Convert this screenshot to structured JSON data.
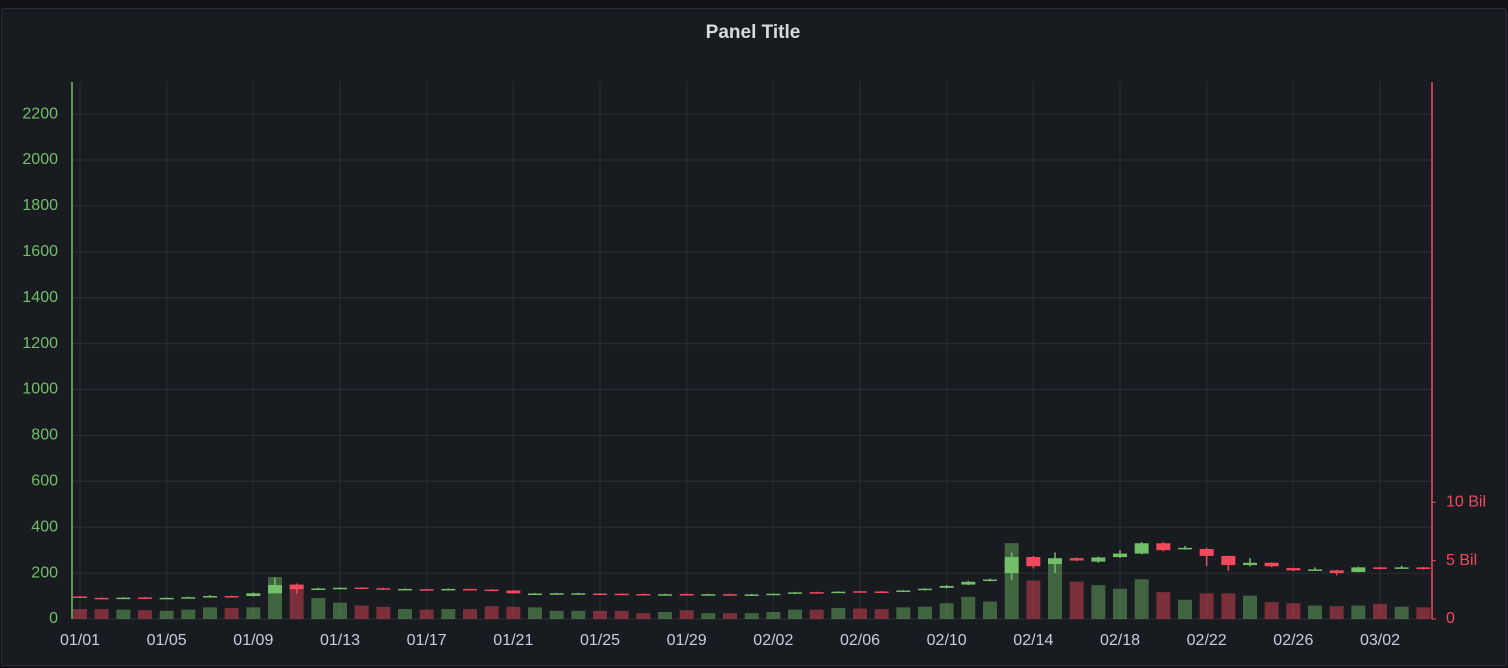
{
  "chart_data": {
    "type": "candlestick",
    "title": "Panel Title",
    "categories": [
      "01/01",
      null,
      null,
      null,
      "01/05",
      null,
      null,
      null,
      "01/09",
      null,
      null,
      null,
      "01/13",
      null,
      null,
      null,
      "01/17",
      null,
      null,
      null,
      "01/21",
      null,
      null,
      null,
      "01/25",
      null,
      null,
      null,
      "01/29",
      null,
      null,
      null,
      "02/02",
      null,
      null,
      null,
      "02/06",
      null,
      null,
      null,
      "02/10",
      null,
      null,
      null,
      "02/14",
      null,
      null,
      null,
      "02/18",
      null,
      null,
      null,
      "02/22",
      null,
      null,
      null,
      "02/26",
      null,
      null,
      null,
      "03/02",
      null,
      null
    ],
    "open": [
      98,
      92,
      89,
      94,
      90,
      92,
      95,
      100,
      100,
      112,
      150,
      128,
      132,
      137,
      134,
      128,
      130,
      128,
      131,
      128,
      124,
      107,
      110,
      111,
      111,
      110,
      109,
      106,
      109,
      107,
      108,
      105,
      107,
      112,
      117,
      116,
      121,
      120,
      120,
      126,
      136,
      150,
      166,
      200,
      270,
      240,
      265,
      250,
      270,
      285,
      330,
      305,
      305,
      275,
      235,
      245,
      222,
      212,
      212,
      205,
      225,
      220,
      225
    ],
    "high": [
      100,
      94,
      95,
      96,
      94,
      97,
      104,
      102,
      115,
      180,
      155,
      136,
      138,
      139,
      136,
      133,
      131,
      133,
      132,
      130,
      126,
      113,
      114,
      114,
      113,
      112,
      111,
      110,
      111,
      110,
      110,
      109,
      112,
      118,
      119,
      121,
      123,
      122,
      126,
      134,
      148,
      166,
      176,
      290,
      275,
      290,
      268,
      272,
      300,
      335,
      335,
      318,
      310,
      275,
      265,
      247,
      224,
      225,
      214,
      228,
      227,
      232,
      227
    ],
    "low": [
      92,
      87,
      88,
      88,
      89,
      91,
      94,
      95,
      98,
      110,
      110,
      126,
      130,
      131,
      127,
      126,
      125,
      126,
      126,
      122,
      110,
      105,
      108,
      109,
      107,
      106,
      103,
      104,
      105,
      105,
      105,
      103,
      105,
      110,
      113,
      114,
      117,
      116,
      118,
      124,
      134,
      148,
      164,
      170,
      220,
      200,
      252,
      245,
      266,
      282,
      295,
      302,
      230,
      210,
      230,
      226,
      208,
      210,
      190,
      203,
      216,
      218,
      215
    ],
    "close": [
      94,
      89,
      93,
      90,
      92,
      95,
      100,
      97,
      112,
      148,
      130,
      133,
      136,
      133,
      129,
      131,
      127,
      131,
      128,
      124,
      112,
      111,
      112,
      112,
      109,
      108,
      105,
      108,
      107,
      108,
      107,
      107,
      110,
      116,
      115,
      119,
      119,
      118,
      124,
      132,
      144,
      162,
      172,
      270,
      230,
      265,
      255,
      268,
      285,
      330,
      300,
      310,
      275,
      235,
      245,
      230,
      212,
      216,
      200,
      225,
      218,
      225,
      218
    ],
    "volume": [
      0.85,
      0.85,
      0.8,
      0.75,
      0.7,
      0.8,
      1.0,
      0.95,
      1.0,
      3.6,
      2.9,
      1.8,
      1.4,
      1.15,
      1.05,
      0.85,
      0.8,
      0.85,
      0.85,
      1.1,
      1.05,
      1.0,
      0.7,
      0.7,
      0.7,
      0.7,
      0.5,
      0.6,
      0.75,
      0.5,
      0.5,
      0.5,
      0.6,
      0.8,
      0.8,
      0.95,
      0.9,
      0.85,
      1.0,
      1.05,
      1.35,
      1.9,
      1.5,
      6.5,
      3.3,
      5.0,
      3.2,
      2.9,
      2.6,
      3.4,
      2.3,
      1.65,
      2.2,
      2.2,
      2.0,
      1.45,
      1.35,
      1.15,
      1.1,
      1.15,
      1.3,
      1.05,
      1.0
    ],
    "up_color": "#73bf69",
    "down_color": "#f2495c",
    "ylim": [
      0,
      2340
    ],
    "yticks": [
      0,
      200,
      400,
      600,
      800,
      1000,
      1200,
      1400,
      1600,
      1800,
      2000,
      2200
    ],
    "y2lim": [
      0,
      46
    ],
    "y2ticks": [
      0,
      {
        "value": 5,
        "label": "5 Bil"
      },
      {
        "value": 10,
        "label": "10 Bil"
      }
    ],
    "grid": true
  }
}
